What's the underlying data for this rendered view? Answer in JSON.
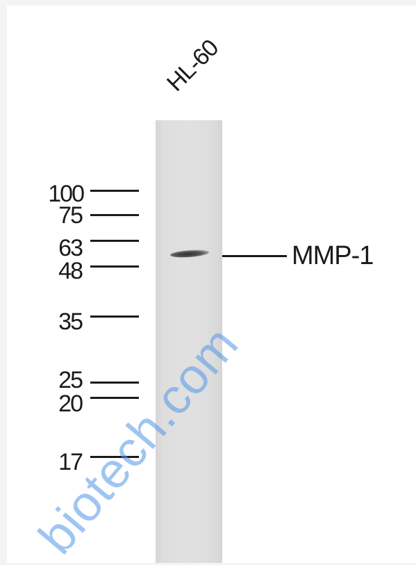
{
  "lane": {
    "label": "HL-60"
  },
  "markers": [
    {
      "label": "100"
    },
    {
      "label": "75"
    },
    {
      "label": "63"
    },
    {
      "label": "48"
    },
    {
      "label": "35"
    },
    {
      "label": "25"
    },
    {
      "label": "20"
    },
    {
      "label": "17"
    }
  ],
  "band": {
    "target": "MMP-1"
  },
  "watermark": {
    "text": "biotech.com"
  },
  "colors": {
    "lane": "#e0e0e0",
    "ink": "#1a1a1a",
    "watermark": "#5096e6"
  }
}
